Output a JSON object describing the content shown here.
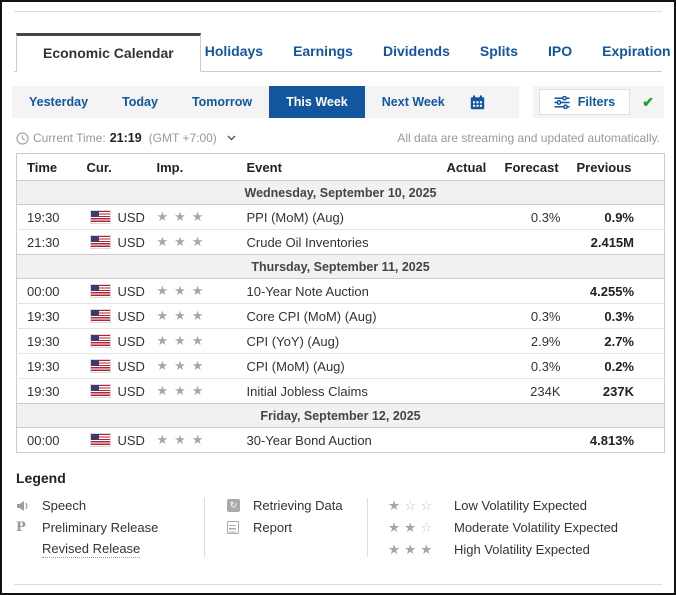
{
  "tabs": {
    "items": [
      {
        "label": "Economic Calendar",
        "active": true
      },
      {
        "label": "Holidays",
        "active": false
      },
      {
        "label": "Earnings",
        "active": false
      },
      {
        "label": "Dividends",
        "active": false
      },
      {
        "label": "Splits",
        "active": false
      },
      {
        "label": "IPO",
        "active": false
      },
      {
        "label": "Expiration",
        "active": false
      }
    ]
  },
  "toolbar": {
    "range_buttons": [
      "Yesterday",
      "Today",
      "Tomorrow",
      "This Week",
      "Next Week"
    ],
    "active_range": "This Week",
    "calendar_icon": "calendar-icon",
    "filters_label": "Filters",
    "filters_icon": "filter-sliders-icon",
    "status_icon": "green-check-icon"
  },
  "status": {
    "current_time_label": "Current Time:",
    "current_time": "21:19",
    "timezone": "(GMT +7:00)",
    "clock_icon": "clock-icon",
    "caret_icon": "chevron-down-icon",
    "streaming_note": "All data are streaming and updated automatically."
  },
  "table": {
    "headers": [
      "Time",
      "Cur.",
      "Imp.",
      "Event",
      "Actual",
      "Forecast",
      "Previous"
    ],
    "flag_icon": "us-flag-icon",
    "sections": [
      {
        "date": "Wednesday, September 10, 2025",
        "rows": [
          {
            "time": "19:30",
            "currency": "USD",
            "importance": 3,
            "event": "PPI (MoM) (Aug)",
            "actual": "",
            "forecast": "0.3%",
            "previous": "0.9%"
          },
          {
            "time": "21:30",
            "currency": "USD",
            "importance": 3,
            "event": "Crude Oil Inventories",
            "actual": "",
            "forecast": "",
            "previous": "2.415M"
          }
        ]
      },
      {
        "date": "Thursday, September 11, 2025",
        "rows": [
          {
            "time": "00:00",
            "currency": "USD",
            "importance": 3,
            "event": "10-Year Note Auction",
            "actual": "",
            "forecast": "",
            "previous": "4.255%"
          },
          {
            "time": "19:30",
            "currency": "USD",
            "importance": 3,
            "event": "Core CPI (MoM) (Aug)",
            "actual": "",
            "forecast": "0.3%",
            "previous": "0.3%"
          },
          {
            "time": "19:30",
            "currency": "USD",
            "importance": 3,
            "event": "CPI (YoY) (Aug)",
            "actual": "",
            "forecast": "2.9%",
            "previous": "2.7%"
          },
          {
            "time": "19:30",
            "currency": "USD",
            "importance": 3,
            "event": "CPI (MoM) (Aug)",
            "actual": "",
            "forecast": "0.3%",
            "previous": "0.2%"
          },
          {
            "time": "19:30",
            "currency": "USD",
            "importance": 3,
            "event": "Initial Jobless Claims",
            "actual": "",
            "forecast": "234K",
            "previous": "237K"
          }
        ]
      },
      {
        "date": "Friday, September 12, 2025",
        "rows": [
          {
            "time": "00:00",
            "currency": "USD",
            "importance": 3,
            "event": "30-Year Bond Auction",
            "actual": "",
            "forecast": "",
            "previous": "4.813%"
          }
        ]
      }
    ]
  },
  "legend": {
    "title": "Legend",
    "col1": [
      {
        "icon": "speech-icon",
        "label": "Speech"
      },
      {
        "icon": "preliminary-icon",
        "label": "Preliminary Release"
      },
      {
        "icon": null,
        "label": "Revised Release",
        "underlined": true
      }
    ],
    "col2": [
      {
        "icon": "retrieving-data-icon",
        "label": "Retrieving Data"
      },
      {
        "icon": "report-icon",
        "label": "Report"
      }
    ],
    "col3": [
      {
        "stars_filled": 1,
        "stars_total": 3,
        "label": "Low Volatility Expected"
      },
      {
        "stars_filled": 2,
        "stars_total": 3,
        "label": "Moderate Volatility Expected"
      },
      {
        "stars_filled": 3,
        "stars_total": 3,
        "label": "High Volatility Expected"
      }
    ]
  },
  "colors": {
    "accent_blue": "#1256a0",
    "active_button_bg": "#1256a0",
    "check_green": "#23a127",
    "star_filled": "#a6a6a6",
    "star_outline": "#c9c9c9",
    "section_bg": "#f1f1f1",
    "toolbar_bg": "#f4f4f4",
    "flag_red": "#b22234",
    "flag_blue": "#3c3b6e"
  }
}
